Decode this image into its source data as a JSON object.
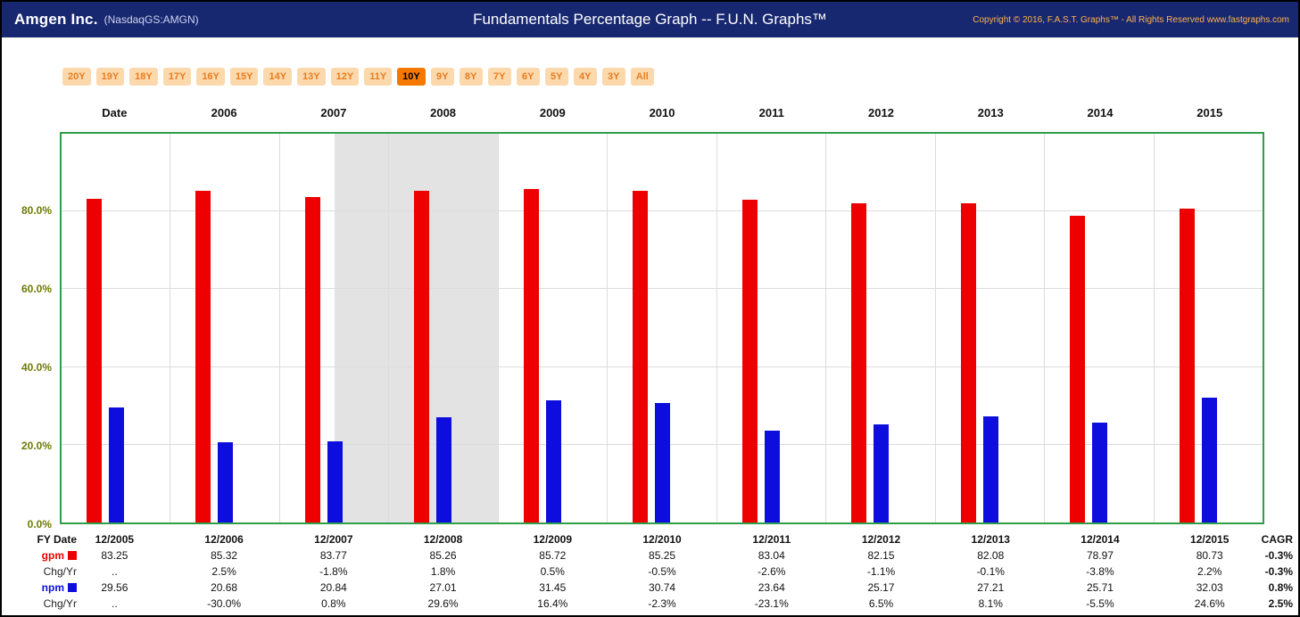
{
  "header": {
    "company": "Amgen Inc.",
    "ticker": "(NasdaqGS:AMGN)",
    "title": "Fundamentals Percentage Graph -- F.U.N. Graphs™",
    "copyright": "Copyright © 2016, F.A.S.T. Graphs™ - All Rights Reserved www.fastgraphs.com"
  },
  "range_buttons": {
    "options": [
      "20Y",
      "19Y",
      "18Y",
      "17Y",
      "16Y",
      "15Y",
      "14Y",
      "13Y",
      "12Y",
      "11Y",
      "10Y",
      "9Y",
      "8Y",
      "7Y",
      "6Y",
      "5Y",
      "4Y",
      "3Y",
      "All"
    ],
    "active": "10Y"
  },
  "chart_data": {
    "type": "bar",
    "title": "Fundamentals Percentage Graph -- F.U.N. Graphs™",
    "x_header_label": "Date",
    "top_year_labels": [
      "2006",
      "2007",
      "2008",
      "2009",
      "2010",
      "2011",
      "2012",
      "2013",
      "2014",
      "2015"
    ],
    "categories": [
      "12/2005",
      "12/2006",
      "12/2007",
      "12/2008",
      "12/2009",
      "12/2010",
      "12/2011",
      "12/2012",
      "12/2013",
      "12/2014",
      "12/2015"
    ],
    "series": [
      {
        "name": "gpm",
        "color": "#ee0000",
        "values": [
          83.25,
          85.32,
          83.77,
          85.26,
          85.72,
          85.25,
          83.04,
          82.15,
          82.08,
          78.97,
          80.73
        ]
      },
      {
        "name": "npm",
        "color": "#0d0ddd",
        "values": [
          29.56,
          20.68,
          20.84,
          27.01,
          31.45,
          30.74,
          23.64,
          25.17,
          27.21,
          25.71,
          32.03
        ]
      }
    ],
    "y_ticks": [
      "80.0%",
      "60.0%",
      "40.0%",
      "20.0%",
      "0.0%"
    ],
    "y_tick_values": [
      80,
      60,
      40,
      20,
      0
    ],
    "ylim": [
      0,
      100
    ],
    "grid": true,
    "legend_position": "table-left",
    "recession_band": {
      "covers": "2008",
      "start_frac": 0.2273,
      "width_frac": 0.1364
    }
  },
  "table": {
    "header_label": "FY Date",
    "cagr_label": "CAGR",
    "dates": [
      "12/2005",
      "12/2006",
      "12/2007",
      "12/2008",
      "12/2009",
      "12/2010",
      "12/2011",
      "12/2012",
      "12/2013",
      "12/2014",
      "12/2015"
    ],
    "rows": [
      {
        "label": "gpm",
        "swatch": "#ee0000",
        "label_class": "gpm-label",
        "values": [
          "83.25",
          "85.32",
          "83.77",
          "85.26",
          "85.72",
          "85.25",
          "83.04",
          "82.15",
          "82.08",
          "78.97",
          "80.73"
        ],
        "cagr": "-0.3%"
      },
      {
        "label": "Chg/Yr",
        "swatch": null,
        "label_class": "chg-label",
        "values": [
          "..",
          "2.5%",
          "-1.8%",
          "1.8%",
          "0.5%",
          "-0.5%",
          "-2.6%",
          "-1.1%",
          "-0.1%",
          "-3.8%",
          "2.2%"
        ],
        "cagr": "-0.3%"
      },
      {
        "label": "npm",
        "swatch": "#0d0ddd",
        "label_class": "npm-label",
        "values": [
          "29.56",
          "20.68",
          "20.84",
          "27.01",
          "31.45",
          "30.74",
          "23.64",
          "25.17",
          "27.21",
          "25.71",
          "32.03"
        ],
        "cagr": "0.8%"
      },
      {
        "label": "Chg/Yr",
        "swatch": null,
        "label_class": "chg-label",
        "values": [
          "..",
          "-30.0%",
          "0.8%",
          "29.6%",
          "16.4%",
          "-2.3%",
          "-23.1%",
          "6.5%",
          "8.1%",
          "-5.5%",
          "24.6%"
        ],
        "cagr": "2.5%"
      }
    ]
  },
  "colors": {
    "header_bg": "#182870",
    "gpm": "#ee0000",
    "npm": "#0d0ddd",
    "chart_border": "#2f9e4a",
    "axis_label": "#6f7c00",
    "grid": "#dcdcdc",
    "recession_band": "#e3e3e3",
    "button_bg": "#fcd8ad",
    "button_text": "#e87d1e",
    "button_active_bg": "#f57900",
    "copyright_text": "#ffb34d"
  }
}
